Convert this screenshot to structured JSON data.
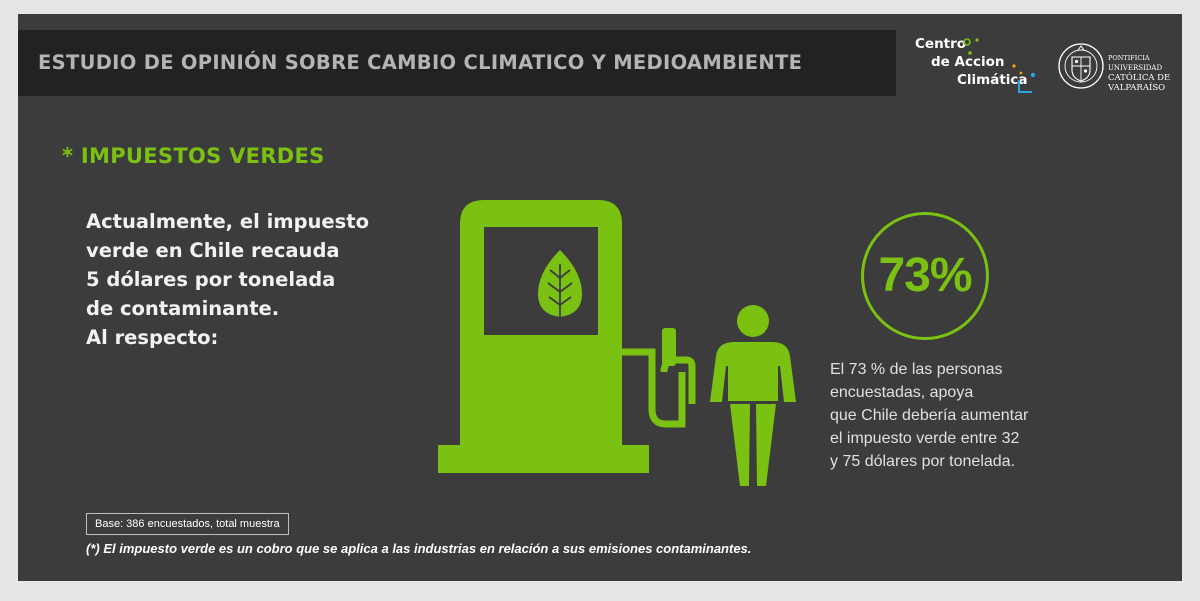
{
  "header": {
    "title": "ESTUDIO DE OPINIÓN SOBRE CAMBIO CLIMATICO Y MEDIOAMBIENTE"
  },
  "logos": {
    "centro": {
      "line1": "Centro",
      "line2": "de Accion",
      "line3": "Climática"
    },
    "ucv": {
      "line1": "PONTIFICIA",
      "line2": "UNIVERSIDAD",
      "line3": "CATÓLICA DE",
      "line4": "VALPARAÍSO"
    }
  },
  "section": {
    "title": "* IMPUESTOS VERDES"
  },
  "intro": {
    "lines": [
      "Actualmente, el impuesto",
      "verde en Chile recauda",
      "5 dólares por tonelada",
      "de contaminante.",
      "Al respecto:"
    ]
  },
  "illustration": {
    "icons": [
      "fuel-pump-icon",
      "leaf-icon",
      "person-icon"
    ]
  },
  "result": {
    "percentage": "73%",
    "lines": [
      "El 73 % de las personas",
      "encuestadas, apoya",
      "que Chile debería aumentar",
      "el impuesto verde entre 32",
      "y 75 dólares por tonelada."
    ]
  },
  "notes": {
    "base": "Base: 386 encuestados, total muestra",
    "footnote": "(*) El impuesto verde es un cobro que se aplica a las industrias en relación a sus emisiones contaminantes."
  },
  "colors": {
    "accent_green": "#7ac112",
    "background": "#3c3c3c",
    "header_bar": "#222222",
    "page_border": "#e6e6e6"
  }
}
